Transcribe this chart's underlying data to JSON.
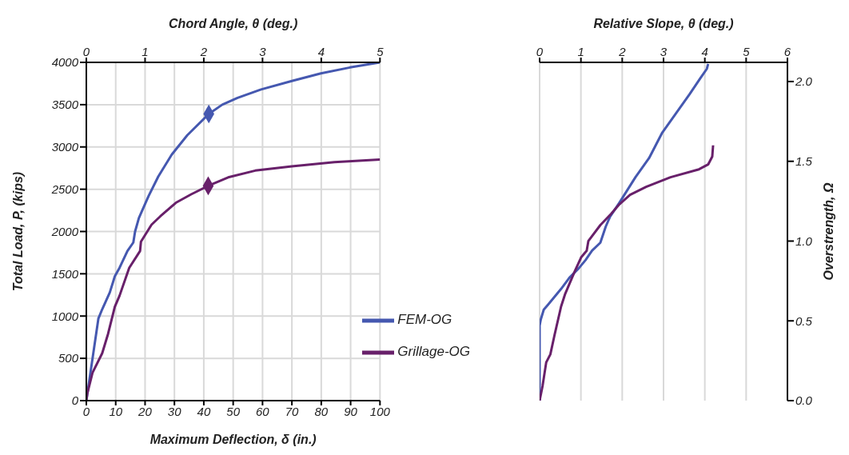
{
  "chart_data": [
    {
      "type": "line",
      "xlabel": "Maximum Deflection, δ (in.)",
      "ylabel": "Total Load, P, (kips)",
      "x2label": "Chord Angle, θ (deg.)",
      "xlim": [
        0,
        100
      ],
      "xticks": [
        0,
        10,
        20,
        30,
        40,
        50,
        60,
        70,
        80,
        90,
        100
      ],
      "x2lim": [
        0,
        5
      ],
      "x2ticks": [
        0,
        1,
        2,
        3,
        4,
        5
      ],
      "ylim": [
        0,
        4000
      ],
      "yticks": [
        0,
        500,
        1000,
        1500,
        2000,
        2500,
        3000,
        3500,
        4000
      ],
      "grid": true,
      "legend": "bottom right",
      "marker": "none",
      "line_style": "solid",
      "series": [
        {
          "name": "FEM-OG",
          "color": "#4558b0",
          "x": [
            0,
            4.1,
            5.4,
            8.0,
            9.7,
            11.3,
            14.0,
            16.0,
            16.6,
            17.9,
            21.2,
            24.5,
            29.1,
            34.4,
            41.7,
            46.3,
            51.5,
            59.5,
            70.0,
            79.9,
            89.8,
            100
          ],
          "values": [
            0,
            970,
            1080,
            1280,
            1470,
            1570,
            1770,
            1870,
            2000,
            2160,
            2420,
            2650,
            2910,
            3140,
            3390,
            3500,
            3580,
            3680,
            3780,
            3870,
            3940,
            4000
          ]
        },
        {
          "name": "Grillage-OG",
          "color": "#68206a",
          "x": [
            0,
            0.3,
            2.1,
            5.4,
            7.4,
            9.7,
            11.3,
            14.6,
            18.3,
            18.6,
            22.2,
            25.2,
            30.5,
            35.7,
            41.5,
            48.3,
            57.5,
            70.0,
            84.5,
            100
          ],
          "values": [
            0,
            80,
            330,
            560,
            790,
            1110,
            1240,
            1570,
            1770,
            1880,
            2080,
            2180,
            2340,
            2440,
            2540,
            2640,
            2720,
            2770,
            2820,
            2850
          ]
        },
        {
          "type": "scatter",
          "marker": "diamond",
          "color": "#4558b0",
          "x": [
            41.7
          ],
          "values": [
            3390
          ]
        },
        {
          "type": "scatter",
          "marker": "diamond",
          "color": "#68206a",
          "x": [
            41.5
          ],
          "values": [
            2540
          ]
        }
      ]
    },
    {
      "type": "line",
      "xlabel": "Relative Slope, θ (deg.)",
      "ylabel": "Overstrength,  Ω",
      "xlim": [
        0,
        6
      ],
      "xticks": [
        0,
        1,
        2,
        3,
        4,
        5,
        6
      ],
      "ylim": [
        0,
        2.12
      ],
      "yticks": [
        {
          "value": 0,
          "label": "0.0"
        },
        {
          "value": 0.5,
          "label": "0.5"
        },
        {
          "value": 1,
          "label": "1.0"
        },
        {
          "value": 1.5,
          "label": "1.5"
        },
        {
          "value": 2,
          "label": "2.0"
        }
      ],
      "grid": "x",
      "marker": "none",
      "line_style": "solid",
      "series": [
        {
          "color": "#4558b0",
          "x": [
            0,
            0,
            0.03,
            0.1,
            0.2,
            0.36,
            0.52,
            0.72,
            0.95,
            1.11,
            1.27,
            1.47,
            1.6,
            1.7,
            1.93,
            2.32,
            2.65,
            2.97,
            3.3,
            3.63,
            3.89,
            4.05,
            4.08
          ],
          "values": [
            0,
            0.47,
            0.51,
            0.57,
            0.6,
            0.65,
            0.7,
            0.77,
            0.83,
            0.88,
            0.94,
            0.99,
            1.09,
            1.15,
            1.24,
            1.4,
            1.52,
            1.68,
            1.8,
            1.92,
            2.02,
            2.08,
            2.11
          ]
        },
        {
          "color": "#68206a",
          "x": [
            0,
            0.07,
            0.16,
            0.26,
            0.36,
            0.52,
            0.62,
            0.85,
            1.01,
            1.14,
            1.18,
            1.47,
            1.73,
            1.93,
            2.19,
            2.58,
            3.17,
            3.86,
            4.08,
            4.18,
            4.2
          ],
          "values": [
            0,
            0.09,
            0.24,
            0.29,
            0.41,
            0.59,
            0.67,
            0.81,
            0.9,
            0.94,
            1.0,
            1.1,
            1.17,
            1.23,
            1.29,
            1.34,
            1.4,
            1.45,
            1.48,
            1.53,
            1.6
          ]
        }
      ]
    }
  ]
}
